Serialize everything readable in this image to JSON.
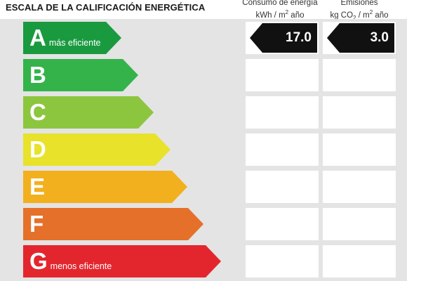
{
  "title": "ESCALA DE LA CALIFICACIÓN ENERGÉTICA",
  "columns": {
    "energy": {
      "line1": "Consumo de energía",
      "line2_prefix": "kWh / m",
      "line2_sup": "2",
      "line2_suffix": " año"
    },
    "emissions": {
      "line1": "Emisiones",
      "line2_prefix": "kg CO",
      "line2_sub": "2",
      "line2_mid": " / m",
      "line2_sup": "2",
      "line2_suffix": " año"
    }
  },
  "ratings": [
    {
      "letter": "A",
      "note": "más eficiente",
      "color": "#1a9a3f"
    },
    {
      "letter": "B",
      "note": "",
      "color": "#34b34a"
    },
    {
      "letter": "C",
      "note": "",
      "color": "#8cc63f"
    },
    {
      "letter": "D",
      "note": "",
      "color": "#e8e22a"
    },
    {
      "letter": "E",
      "note": "",
      "color": "#f2b01e"
    },
    {
      "letter": "F",
      "note": "",
      "color": "#e5702a"
    },
    {
      "letter": "G",
      "note": "menos eficiente",
      "color": "#e3262e"
    }
  ],
  "values": {
    "energy": {
      "rating": "A",
      "value": "17.0"
    },
    "emissions": {
      "rating": "A",
      "value": "3.0"
    }
  },
  "marker_color": "#111111"
}
